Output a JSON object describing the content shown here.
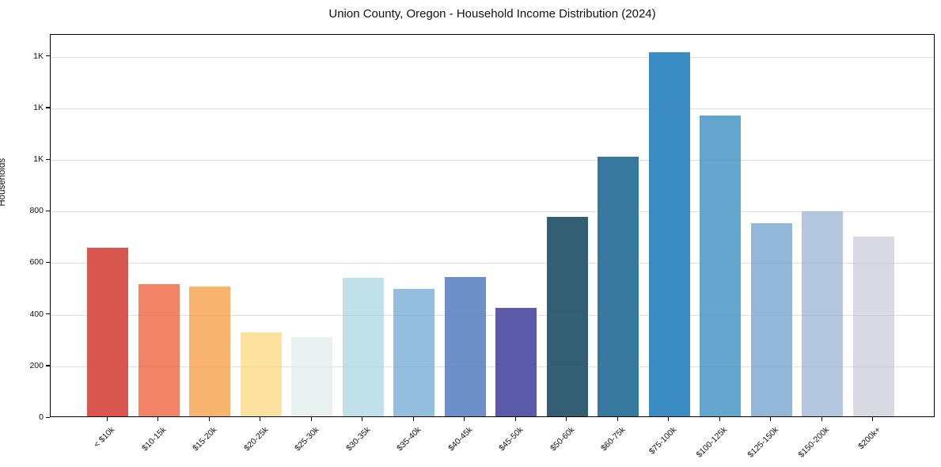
{
  "title": "Union County, Oregon - Household Income Distribution (2024)",
  "chart_data": {
    "type": "bar",
    "title": "Union County, Oregon - Household Income Distribution (2024)",
    "xlabel": "",
    "ylabel": "Households",
    "legend": "none",
    "grid": "horizontal",
    "background": "#ffffff",
    "ylim": [
      0,
      1485
    ],
    "ytick_values": [
      0,
      200,
      400,
      600,
      800,
      1000,
      1200,
      1400
    ],
    "ytick_labels": [
      "0",
      "200",
      "400",
      "600",
      "800",
      "1K",
      "1K",
      "1K"
    ],
    "categories": [
      "< $10k",
      "$10-15k",
      "$15-20k",
      "$20-25k",
      "$25-30k",
      "$30-35k",
      "$35-40k",
      "$40-45k",
      "$45-50k",
      "$50-60k",
      "$60-75k",
      "$75-100k",
      "$100-125k",
      "$125-150k",
      "$150-200k",
      "$200k+"
    ],
    "values": [
      654,
      513,
      503,
      325,
      306,
      536,
      495,
      540,
      420,
      772,
      1005,
      1410,
      1165,
      750,
      796,
      698
    ],
    "bar_colors": [
      "#d9574f",
      "#f28367",
      "#f8b36e",
      "#fce29e",
      "#e9f2f1",
      "#c0e1e9",
      "#93bede",
      "#6d90c8",
      "#5a5aa9",
      "#345f72",
      "#37789f",
      "#3a8cc3",
      "#63a5cd",
      "#93b7d8",
      "#b4c5de",
      "#d8d9e3"
    ]
  }
}
